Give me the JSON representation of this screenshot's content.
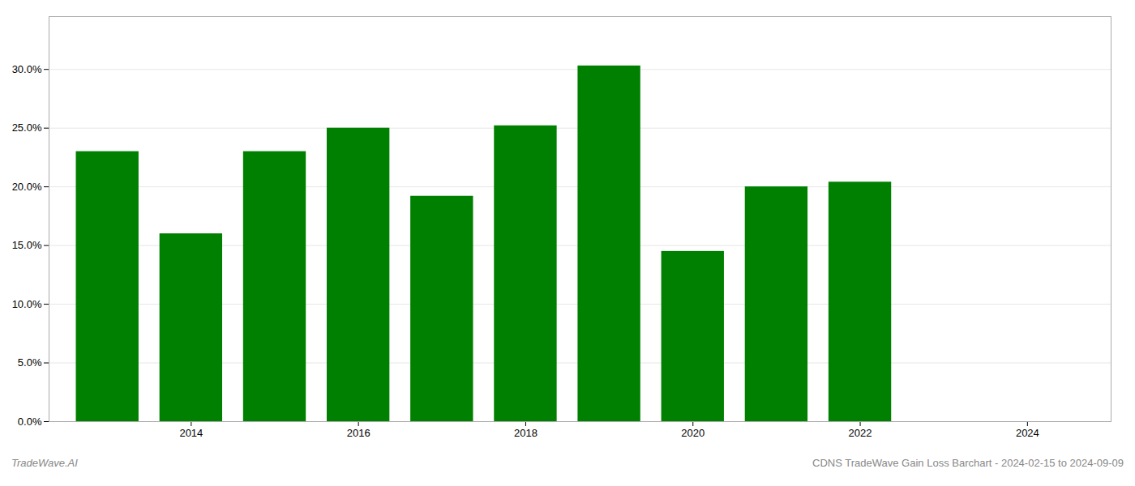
{
  "chart_data": {
    "type": "bar",
    "x": [
      2013,
      2014,
      2015,
      2016,
      2017,
      2018,
      2019,
      2020,
      2021,
      2022
    ],
    "values": [
      0.23,
      0.16,
      0.23,
      0.25,
      0.192,
      0.252,
      0.303,
      0.145,
      0.2,
      0.204
    ],
    "color": "#008000",
    "xlim": [
      2012.3,
      2025.0
    ],
    "xticks": [
      2014,
      2016,
      2018,
      2020,
      2022,
      2024
    ],
    "ylim": [
      0,
      0.345
    ],
    "yticks": [
      {
        "value": 0.0,
        "label": "0.0%"
      },
      {
        "value": 0.05,
        "label": "5.0%"
      },
      {
        "value": 0.1,
        "label": "10.0%"
      },
      {
        "value": 0.15,
        "label": "15.0%"
      },
      {
        "value": 0.2,
        "label": "20.0%"
      },
      {
        "value": 0.25,
        "label": "25.0%"
      },
      {
        "value": 0.3,
        "label": "30.0%"
      }
    ],
    "grid": true,
    "annotations": [
      "TradeWave.AI",
      "CDNS TradeWave Gain Loss Barchart - 2024-02-15 to 2024-09-09"
    ]
  }
}
